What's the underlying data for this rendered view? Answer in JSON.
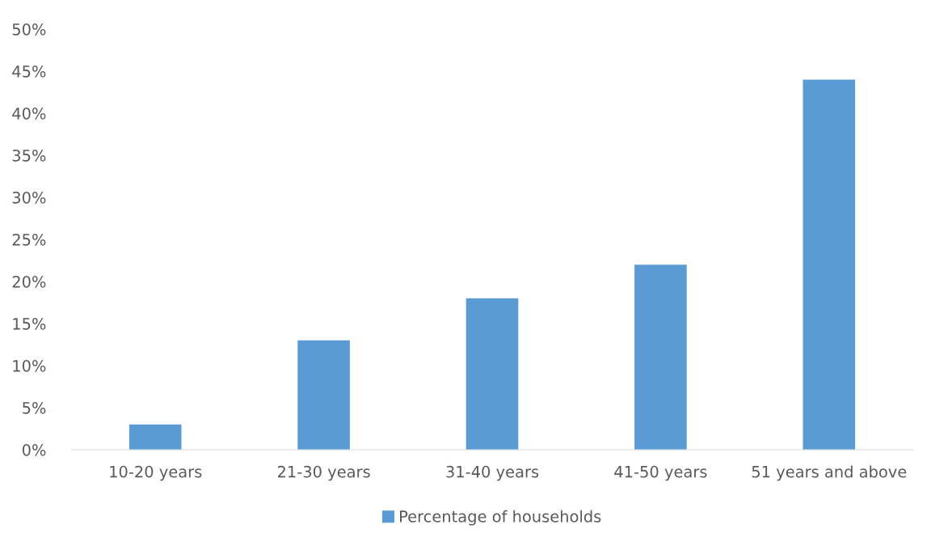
{
  "chart_data": {
    "type": "bar",
    "categories": [
      "10-20 years",
      "21-30 years",
      "31-40 years",
      "41-50 years",
      "51 years and above"
    ],
    "series": [
      {
        "name": "Percentage of households",
        "color": "#5b9bd5",
        "values": [
          3,
          13,
          18,
          22,
          44
        ]
      }
    ],
    "ylim": [
      0,
      50
    ],
    "yticks": [
      {
        "value": 0,
        "label": "0%"
      },
      {
        "value": 5,
        "label": "5%"
      },
      {
        "value": 10,
        "label": "10%"
      },
      {
        "value": 15,
        "label": "15%"
      },
      {
        "value": 20,
        "label": "20%"
      },
      {
        "value": 25,
        "label": "25%"
      },
      {
        "value": 30,
        "label": "30%"
      },
      {
        "value": 35,
        "label": "35%"
      },
      {
        "value": 40,
        "label": "40%"
      },
      {
        "value": 45,
        "label": "45%"
      },
      {
        "value": 50,
        "label": "50%"
      }
    ],
    "grid": false,
    "legend": "bottom"
  }
}
